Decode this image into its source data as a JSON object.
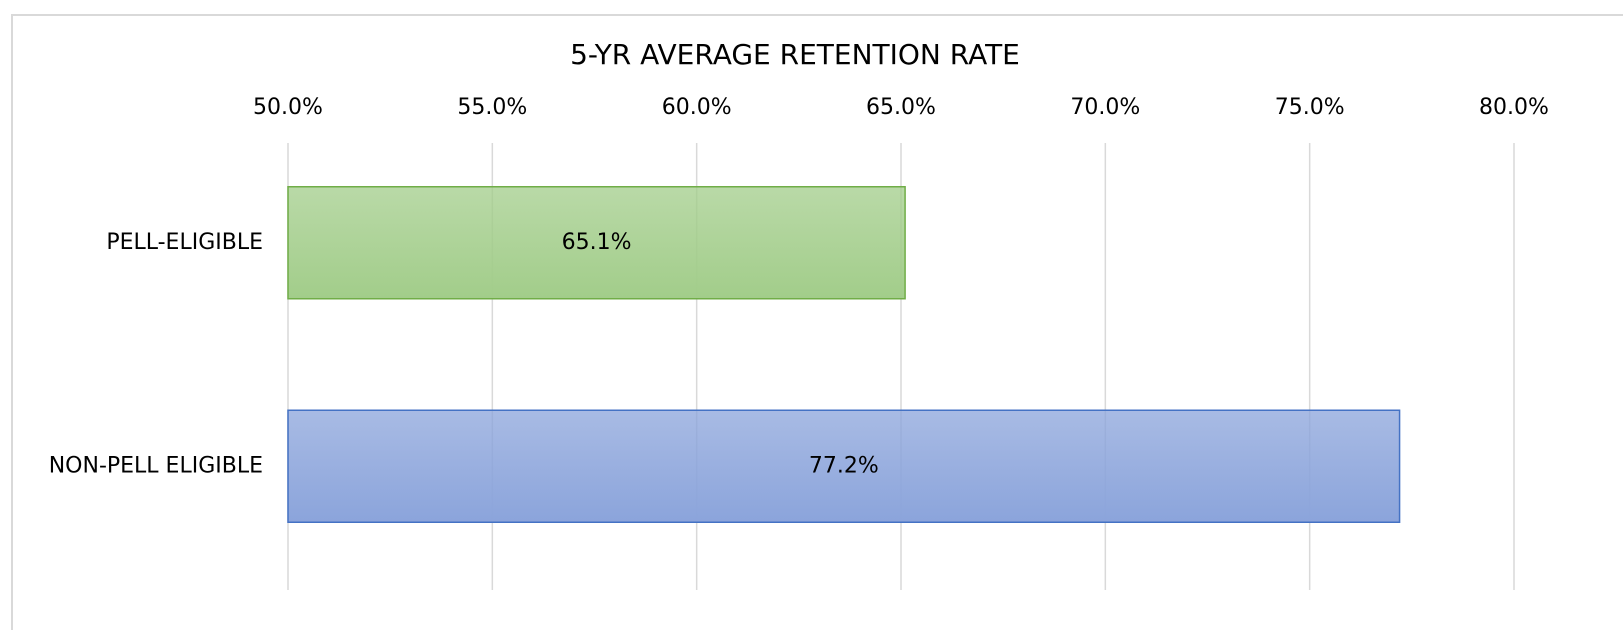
{
  "chart_data": {
    "type": "hbar",
    "title": "5-YR AVERAGE RETENTION RATE",
    "categories": [
      "PELL-ELIGIBLE",
      "NON-PELL ELIGIBLE"
    ],
    "values": [
      65.1,
      77.2
    ],
    "value_labels": [
      "65.1%",
      "77.2%"
    ],
    "colors": [
      "#a2cd8a",
      "#8ba4db"
    ],
    "border_colors": [
      "#70ad47",
      "#4472c4"
    ],
    "xlim": [
      50,
      80
    ],
    "xticks": [
      {
        "value": 50,
        "label": "50.0%"
      },
      {
        "value": 55,
        "label": "55.0%"
      },
      {
        "value": 60,
        "label": "60.0%"
      },
      {
        "value": 65,
        "label": "65.0%"
      },
      {
        "value": 70,
        "label": "70.0%"
      },
      {
        "value": 75,
        "label": "75.0%"
      },
      {
        "value": 80,
        "label": "80.0%"
      }
    ],
    "grid": true
  }
}
